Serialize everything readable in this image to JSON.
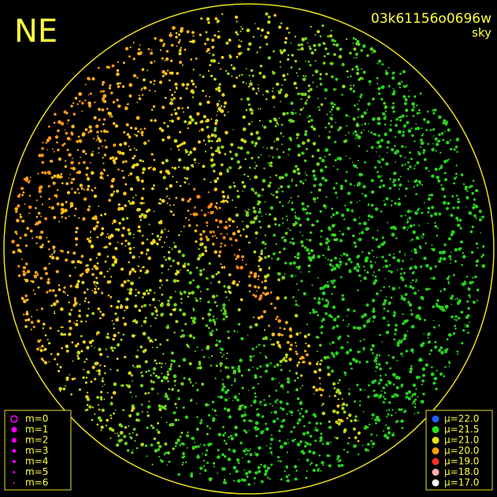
{
  "corner_label": "NE",
  "header": {
    "id": "03k61156o0696w",
    "subtitle": "sky"
  },
  "magnitude_legend": {
    "color": "#ff00ff",
    "items": [
      "m=0",
      "m=1",
      "m=2",
      "m=3",
      "m=4",
      "m=5",
      "m=6"
    ]
  },
  "surface_brightness_legend": {
    "items": [
      {
        "label": "μ=22.0",
        "color": "#2060ff"
      },
      {
        "label": "μ=21.5",
        "color": "#20e020"
      },
      {
        "label": "μ=21.0",
        "color": "#e8e020"
      },
      {
        "label": "μ=20.0",
        "color": "#ff9a10"
      },
      {
        "label": "μ=19.0",
        "color": "#ff3020"
      },
      {
        "label": "μ=18.0",
        "color": "#ffb0b0"
      },
      {
        "label": "μ=17.0",
        "color": "#ffffff"
      }
    ]
  }
}
